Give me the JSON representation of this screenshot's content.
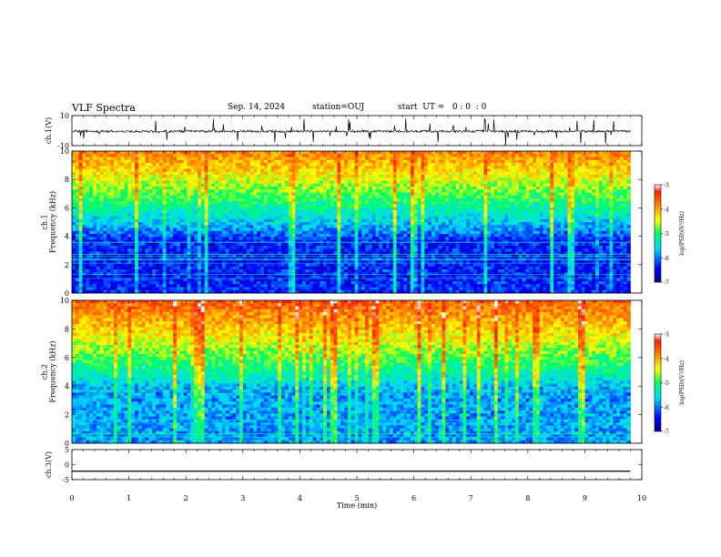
{
  "header": {
    "title": "VLF Spectra",
    "date": "Sep. 14, 2024",
    "station": "station=OUJ",
    "start": "start  UT =   0 : 0  : 0"
  },
  "chart_data": [
    {
      "type": "line",
      "panel": "ch1-waveform",
      "ylabel": "ch.1(V)",
      "ylim": [
        -10,
        10
      ],
      "ytick_labels": [
        "10",
        "-10"
      ],
      "series": [
        {
          "name": "ch.1",
          "approx_level": -0.5,
          "approx_noise_amplitude": 1.5,
          "x_range": [
            0,
            9.8
          ]
        }
      ]
    },
    {
      "type": "heatmap",
      "panel": "ch1-spectrogram",
      "ylabel": "ch.1\nFrequency (kHz)",
      "ylim": [
        0,
        10
      ],
      "ytick_labels": [
        "0",
        "2",
        "4",
        "6",
        "8",
        "10"
      ],
      "x_range": [
        0,
        9.8
      ],
      "colorbar": {
        "label": "log(PSD)(V²/Hz)",
        "range": [
          -7,
          -3
        ],
        "tick_labels": [
          "-7",
          "-6",
          "-5",
          "-4",
          "-3"
        ]
      },
      "description_values": {
        "low_freq_log_psd": -6.5,
        "high_freq_log_psd": -3.8
      }
    },
    {
      "type": "heatmap",
      "panel": "ch2-spectrogram",
      "ylabel": "ch.2\nFrequency (kHz)",
      "ylim": [
        0,
        10
      ],
      "ytick_labels": [
        "0",
        "2",
        "4",
        "6",
        "8",
        "10"
      ],
      "x_range": [
        0,
        9.8
      ],
      "colorbar": {
        "label": "log(PSD)(V²/Hz)",
        "range": [
          -7,
          -3
        ],
        "tick_labels": [
          "-7",
          "-6",
          "-5",
          "-4",
          "-3"
        ]
      },
      "description_values": {
        "low_freq_log_psd": -6.0,
        "high_freq_log_psd": -3.6
      }
    },
    {
      "type": "line",
      "panel": "ch3-waveform",
      "ylabel": "ch.3(V)",
      "ylim": [
        -5,
        5
      ],
      "ytick_labels": [
        "5",
        "0",
        "-5"
      ],
      "series": [
        {
          "name": "ch.3",
          "x": [
            0,
            9.8
          ],
          "y": [
            -2.2,
            -2.2
          ]
        }
      ]
    }
  ],
  "xaxis": {
    "label": "Time (min)",
    "xlim": [
      0,
      10
    ],
    "tick_labels": [
      "0",
      "1",
      "2",
      "3",
      "4",
      "5",
      "6",
      "7",
      "8",
      "9",
      "10"
    ]
  }
}
